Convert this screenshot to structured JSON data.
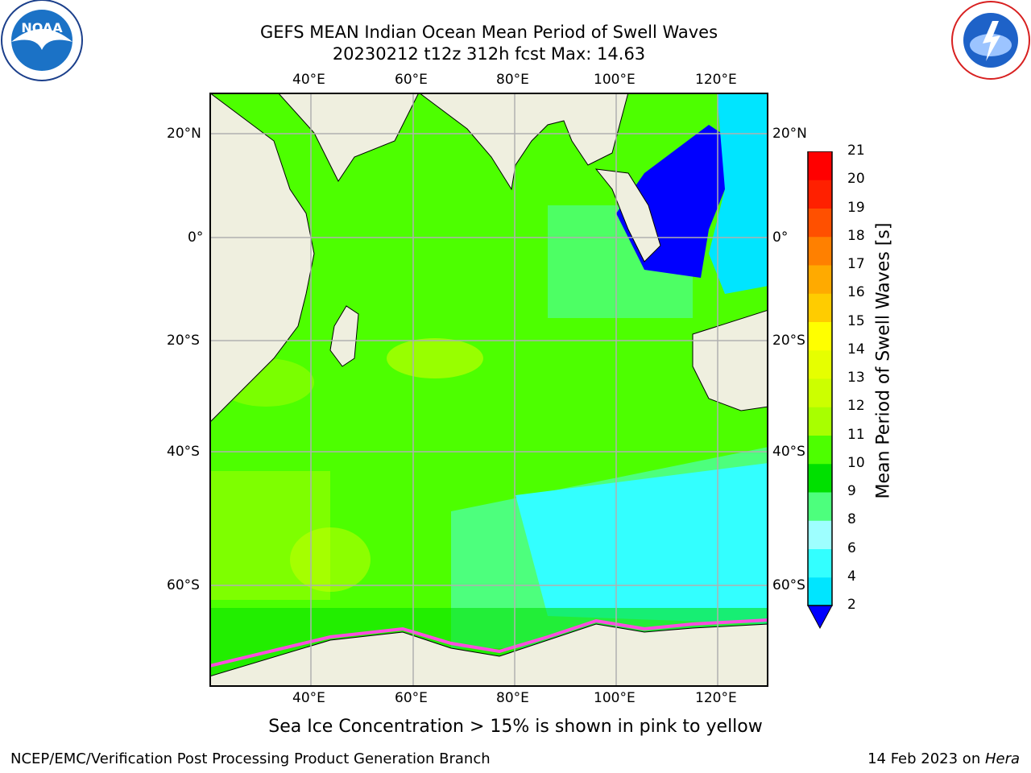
{
  "title": {
    "line1": "GEFS MEAN Indian Ocean Mean Period of Swell Waves",
    "line2": "20230212 t12z 312h fcst   Max: 14.63"
  },
  "map": {
    "lon_ticks": [
      "40°E",
      "60°E",
      "80°E",
      "100°E",
      "120°E"
    ],
    "lat_ticks_left": [
      "20°N",
      "0°",
      "20°S",
      "40°S",
      "60°S"
    ],
    "lat_ticks_right": [
      "20°N",
      "0°",
      "20°S",
      "40°S",
      "60°S"
    ],
    "land_color": "#efefdf",
    "gridline_color": "#b0b0b0"
  },
  "colorbar": {
    "label": "Mean Period of Swell Waves [s]",
    "levels": [
      "2",
      "4",
      "6",
      "8",
      "9",
      "10",
      "11",
      "12",
      "13",
      "14",
      "15",
      "16",
      "17",
      "18",
      "19",
      "20",
      "21"
    ],
    "colors": [
      "#0000ff",
      "#0077ff",
      "#00e5ff",
      "#33ffff",
      "#9effff",
      "#4dff7d",
      "#00e000",
      "#4dff00",
      "#a8ff00",
      "#ccff00",
      "#e6ff00",
      "#ffff00",
      "#ffcc00",
      "#ffaa00",
      "#ff8000",
      "#ff5000",
      "#ff2000",
      "#ff0000"
    ]
  },
  "caption": "Sea Ice Concentration > 15% is shown in pink to yellow",
  "footer": {
    "left": "NCEP/EMC/Verification Post Processing Product Generation Branch",
    "right_date": "14 Feb 2023 on ",
    "right_host": "Hera"
  },
  "logos": {
    "noaa_text": "NOAA",
    "noaa_ring": "NATIONAL OCEANIC AND ATMOSPHERIC ADMINISTRATION · U.S. DEPARTMENT OF COMMERCE",
    "nws_ring": "NATIONAL WEATHER SERVICE"
  }
}
